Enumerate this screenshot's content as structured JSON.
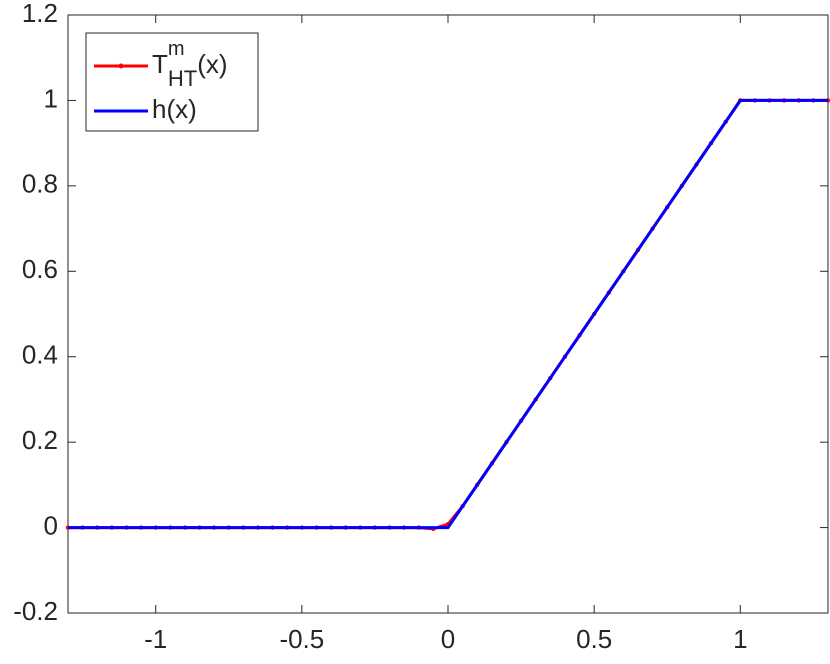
{
  "chart_data": {
    "type": "line",
    "x": [
      -1.3,
      -1.25,
      -1.2,
      -1.15,
      -1.1,
      -1.05,
      -1,
      -0.95,
      -0.9,
      -0.85,
      -0.8,
      -0.75,
      -0.7,
      -0.65,
      -0.6,
      -0.55,
      -0.5,
      -0.45,
      -0.4,
      -0.35,
      -0.3,
      -0.25,
      -0.2,
      -0.15,
      -0.1,
      -0.05,
      0,
      0.05,
      0.1,
      0.15,
      0.2,
      0.25,
      0.3,
      0.35,
      0.4,
      0.45,
      0.5,
      0.55,
      0.6,
      0.65,
      0.7,
      0.75,
      0.8,
      0.85,
      0.9,
      0.95,
      1,
      1.05,
      1.1,
      1.15,
      1.2,
      1.25,
      1.3
    ],
    "series": [
      {
        "name": "T_HT^m(x)",
        "color": "#ff0000",
        "markers": true,
        "values": [
          0,
          0,
          0,
          0,
          0,
          0,
          0,
          0,
          0,
          0,
          0,
          0,
          0,
          0,
          0,
          0,
          0,
          0,
          0,
          0,
          0,
          0,
          0,
          0,
          0,
          -0.003,
          0.008,
          0.05,
          0.1,
          0.15,
          0.2,
          0.25,
          0.3,
          0.35,
          0.4,
          0.45,
          0.5,
          0.55,
          0.6,
          0.65,
          0.7,
          0.75,
          0.8,
          0.85,
          0.9,
          0.95,
          1,
          1,
          1,
          1,
          1,
          1,
          1
        ]
      },
      {
        "name": "h(x)",
        "color": "#0000ff",
        "markers": false,
        "values": [
          0,
          0,
          0,
          0,
          0,
          0,
          0,
          0,
          0,
          0,
          0,
          0,
          0,
          0,
          0,
          0,
          0,
          0,
          0,
          0,
          0,
          0,
          0,
          0,
          0,
          0,
          0,
          0.05,
          0.1,
          0.15,
          0.2,
          0.25,
          0.3,
          0.35,
          0.4,
          0.45,
          0.5,
          0.55,
          0.6,
          0.65,
          0.7,
          0.75,
          0.8,
          0.85,
          0.9,
          0.95,
          1,
          1,
          1,
          1,
          1,
          1,
          1
        ]
      }
    ],
    "xlim": [
      -1.3,
      1.3
    ],
    "ylim": [
      -0.2,
      1.2
    ],
    "xticks": [
      -1,
      -0.5,
      0,
      0.5,
      1
    ],
    "yticks": [
      -0.2,
      0,
      0.2,
      0.4,
      0.6,
      0.8,
      1,
      1.2
    ],
    "legend": "upper left"
  }
}
